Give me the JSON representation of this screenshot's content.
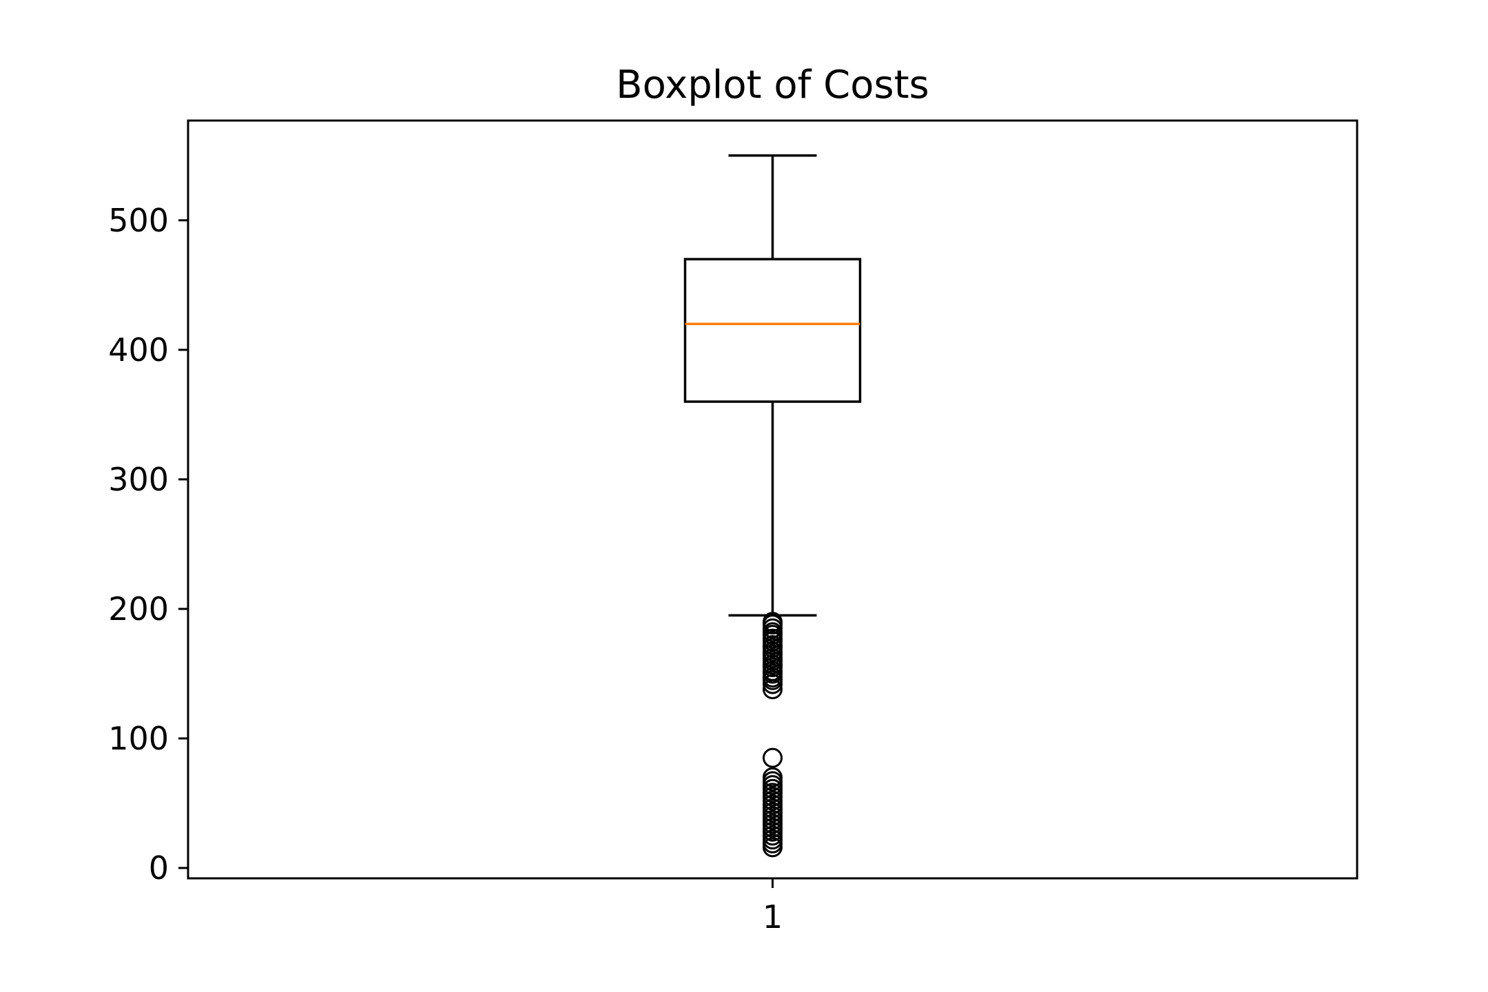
{
  "chart_data": {
    "type": "box",
    "title": "Boxplot of Costs",
    "xlabel": "",
    "ylabel": "",
    "categories": [
      "1"
    ],
    "ylim": [
      -8,
      577
    ],
    "yticks": [
      0,
      100,
      200,
      300,
      400,
      500
    ],
    "ytick_labels": [
      "0",
      "100",
      "200",
      "300",
      "400",
      "500"
    ],
    "grid": false,
    "boxes": [
      {
        "category": "1",
        "whisker_low": 195,
        "q1": 360,
        "median": 420,
        "q3": 470,
        "whisker_high": 550,
        "outliers": [
          190,
          188,
          185,
          182,
          180,
          177,
          175,
          172,
          170,
          167,
          165,
          162,
          160,
          157,
          155,
          152,
          150,
          147,
          145,
          142,
          138,
          85,
          70,
          67,
          64,
          61,
          58,
          55,
          52,
          49,
          46,
          43,
          40,
          37,
          34,
          31,
          28,
          25,
          22,
          19,
          16
        ]
      }
    ],
    "colors": {
      "box": "#000000",
      "median": "#ff7f0e",
      "flier": "#000000",
      "background": "#ffffff"
    }
  }
}
